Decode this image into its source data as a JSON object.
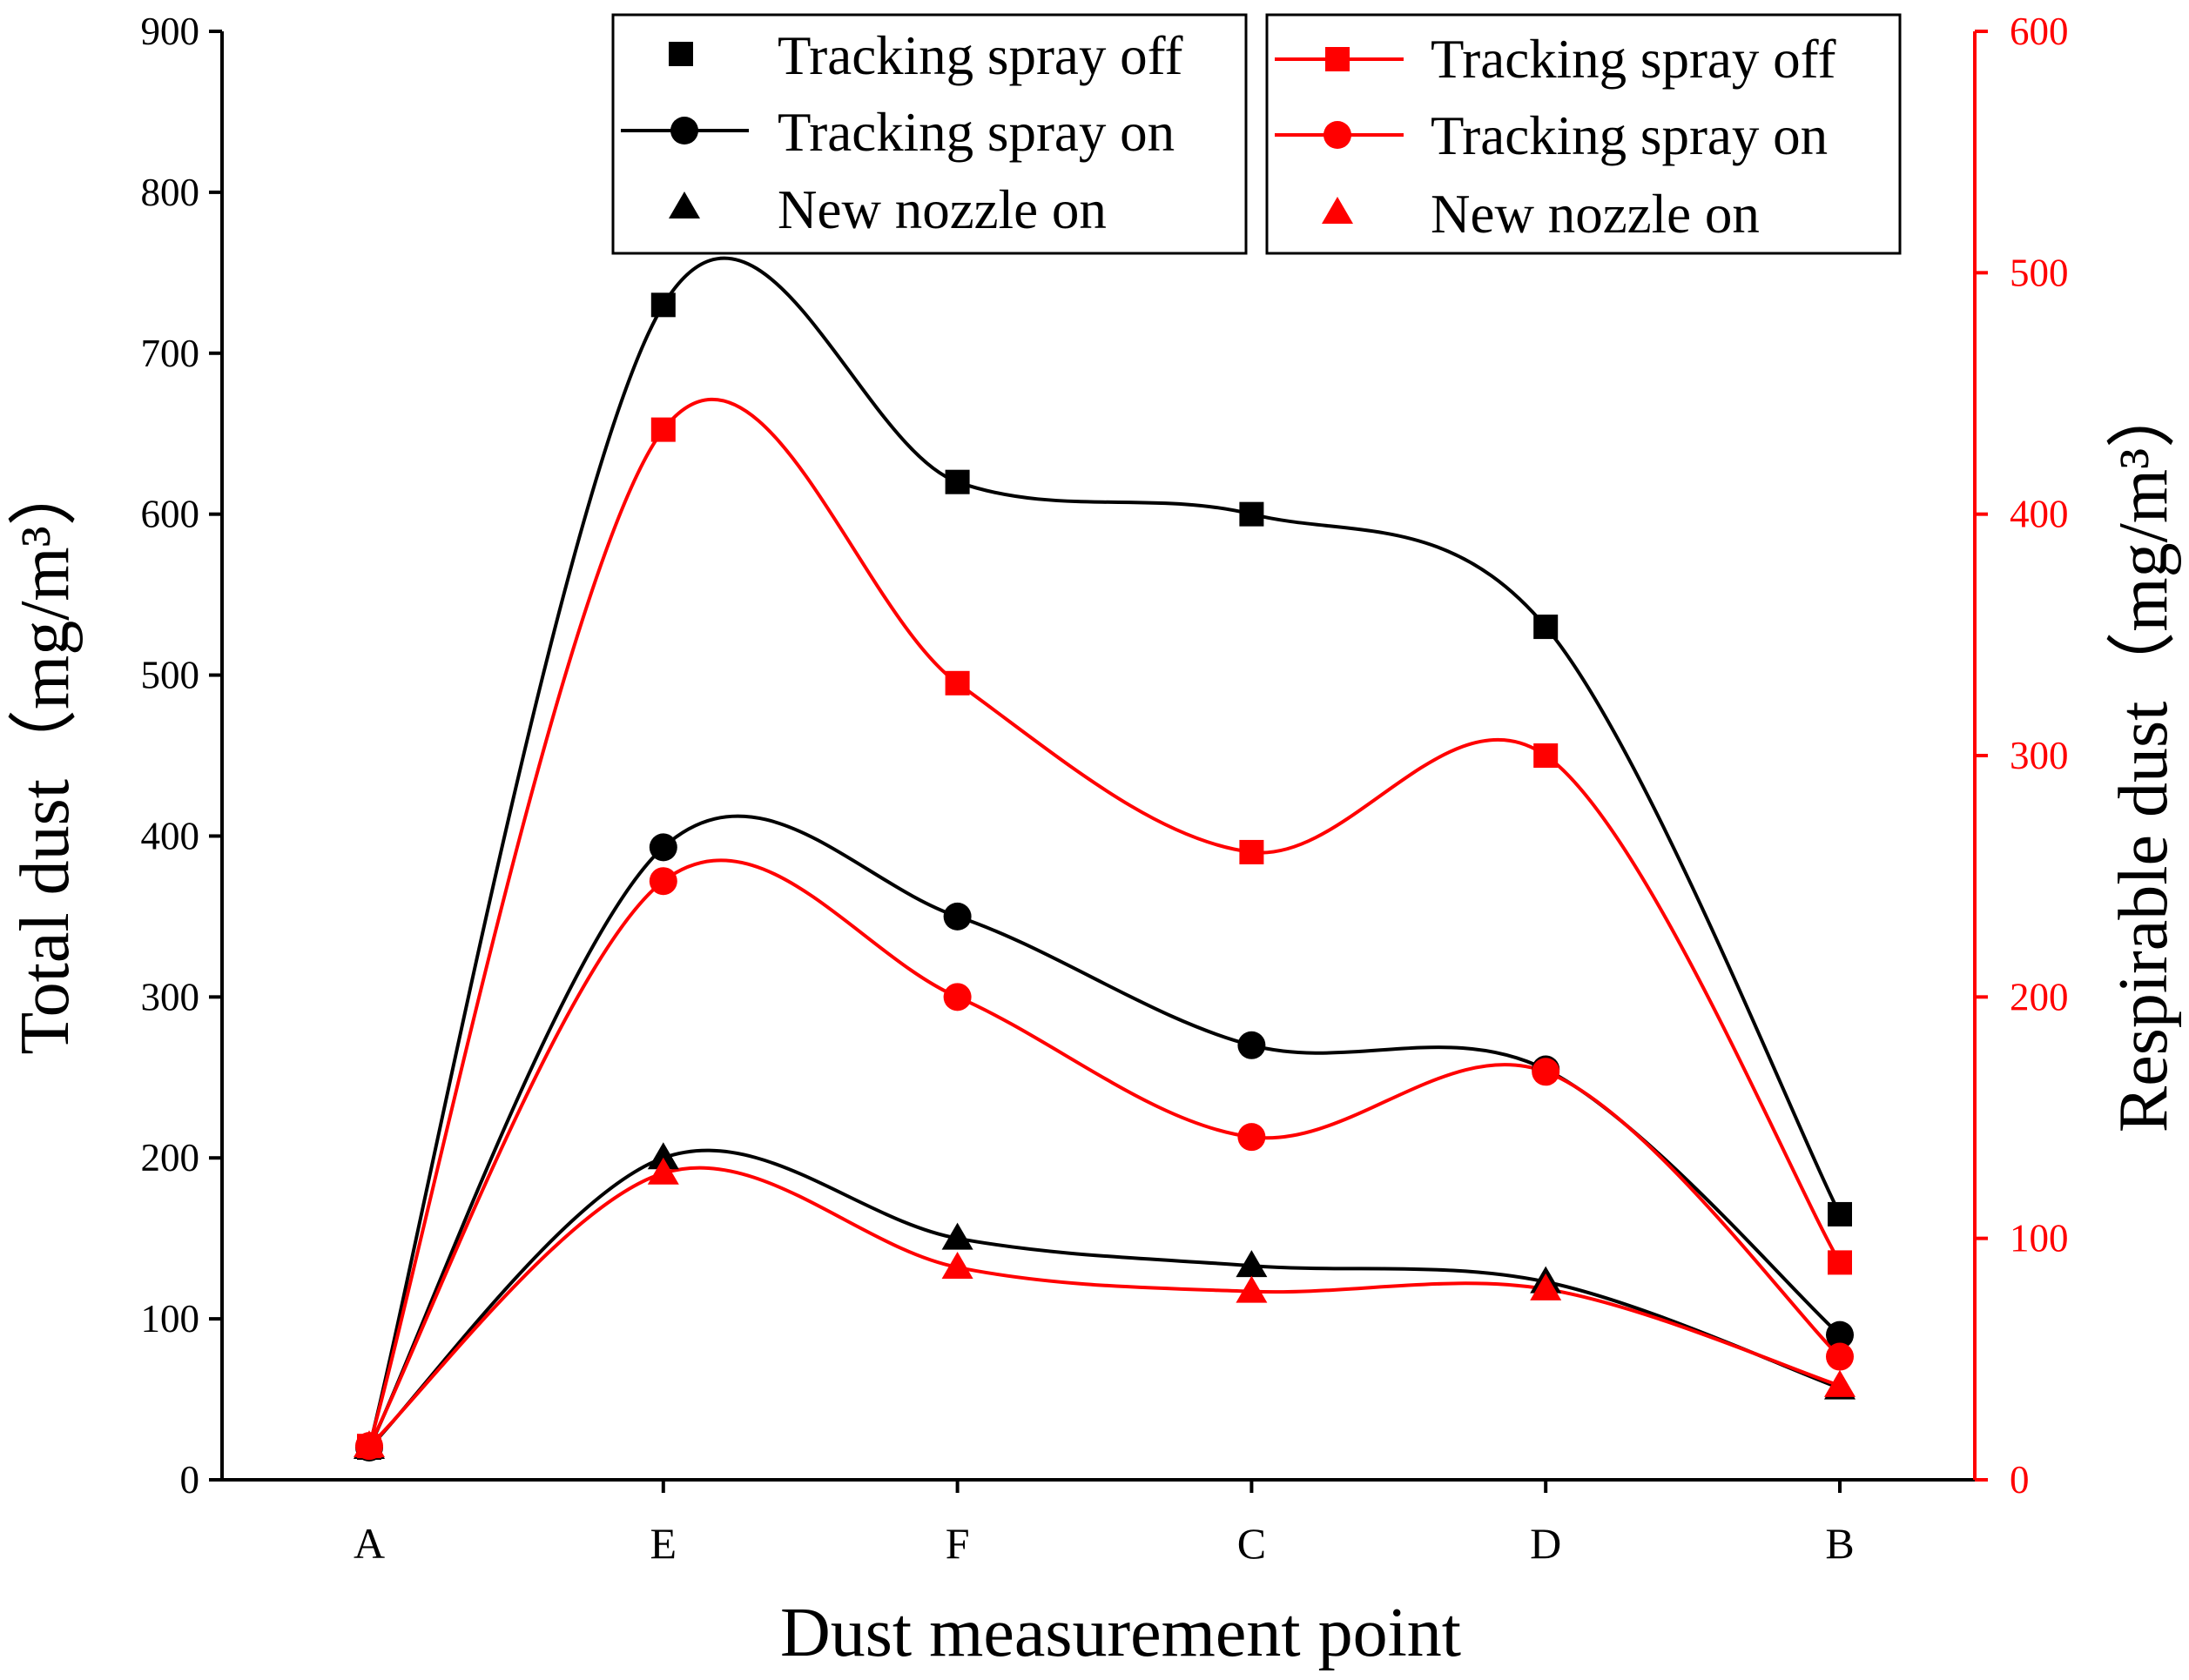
{
  "chart_data": {
    "type": "line",
    "xlabel": "Dust measurement point",
    "ylabel_left": "Total dust（mg/m³）",
    "ylabel_right": "Respirable dust（mg/m³）",
    "categories": [
      "A",
      "E",
      "F",
      "C",
      "D",
      "B"
    ],
    "y_left": {
      "range": [
        0,
        900
      ],
      "ticks": [
        "0",
        "100",
        "200",
        "300",
        "400",
        "500",
        "600",
        "700",
        "800",
        "900"
      ],
      "color": "#000000"
    },
    "y_right": {
      "range": [
        0,
        600
      ],
      "ticks": [
        "0",
        "100",
        "200",
        "300",
        "400",
        "500",
        "600"
      ],
      "color": "#ff0000"
    },
    "series": [
      {
        "name": "Tracking spray off",
        "axis": "left",
        "marker": "square",
        "color": "#000000",
        "values": [
          20,
          730,
          620,
          600,
          530,
          165
        ]
      },
      {
        "name": "Tracking spray on",
        "axis": "left",
        "marker": "circle",
        "color": "#000000",
        "values": [
          20,
          393,
          350,
          270,
          255,
          90
        ]
      },
      {
        "name": "New nozzle on",
        "axis": "left",
        "marker": "triangle",
        "color": "#000000",
        "values": [
          20,
          200,
          150,
          133,
          123,
          57
        ]
      },
      {
        "name": "Tracking spray off",
        "axis": "right",
        "marker": "square",
        "color": "#ff0000",
        "values": [
          14,
          435,
          330,
          260,
          300,
          90
        ]
      },
      {
        "name": "Tracking spray on",
        "axis": "right",
        "marker": "circle",
        "color": "#ff0000",
        "values": [
          14,
          248,
          200,
          142,
          169,
          51
        ]
      },
      {
        "name": "New nozzle on",
        "axis": "right",
        "marker": "triangle",
        "color": "#ff0000",
        "values": [
          14,
          127,
          88,
          78,
          79,
          39
        ]
      }
    ],
    "legend": [
      {
        "group": "left",
        "items": [
          "Tracking spray off",
          "Tracking spray on",
          "New nozzle on"
        ]
      },
      {
        "group": "right",
        "items": [
          "Tracking spray off",
          "Tracking spray on",
          "New nozzle on"
        ]
      }
    ]
  }
}
